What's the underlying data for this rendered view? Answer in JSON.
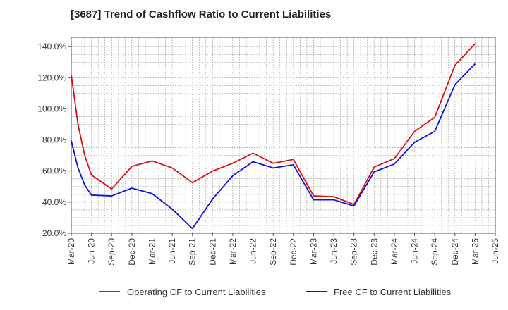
{
  "chart_data": {
    "type": "line",
    "title": "[3687]  Trend of Cashflow Ratio to Current Liabilities",
    "xlabel": "",
    "ylabel": "",
    "ylim": [
      20,
      146
    ],
    "yticks": [
      20,
      40,
      60,
      80,
      100,
      120,
      140
    ],
    "ytick_labels": [
      "20.0%",
      "40.0%",
      "60.0%",
      "80.0%",
      "100.0%",
      "120.0%",
      "140.0%"
    ],
    "xtick_labels": [
      "Mar-20",
      "Jun-20",
      "Sep-20",
      "Dec-20",
      "Mar-21",
      "Jun-21",
      "Sep-21",
      "Dec-21",
      "Mar-22",
      "Jun-22",
      "Sep-22",
      "Dec-22",
      "Mar-23",
      "Jun-23",
      "Sep-23",
      "Dec-23",
      "Mar-24",
      "Jun-24",
      "Sep-24",
      "Dec-24",
      "Mar-25",
      "Jun-25"
    ],
    "grid": true,
    "legend_position": "bottom",
    "series": [
      {
        "name": "Operating CF to Current Liabilities",
        "color": "#dd1111",
        "points": [
          [
            "Mar-20",
            122.0
          ],
          [
            "Apr-20",
            90.0
          ],
          [
            "May-20",
            70.0
          ],
          [
            "Jun-20",
            57.5
          ],
          [
            "Sep-20",
            48.5
          ],
          [
            "Dec-20",
            63.0
          ],
          [
            "Mar-21",
            66.5
          ],
          [
            "Jun-21",
            62.0
          ],
          [
            "Sep-21",
            52.5
          ],
          [
            "Dec-21",
            60.0
          ],
          [
            "Mar-22",
            65.0
          ],
          [
            "Jun-22",
            71.5
          ],
          [
            "Sep-22",
            65.0
          ],
          [
            "Dec-22",
            67.5
          ],
          [
            "Mar-23",
            44.0
          ],
          [
            "Jun-23",
            43.5
          ],
          [
            "Sep-23",
            38.5
          ],
          [
            "Dec-23",
            62.5
          ],
          [
            "Mar-24",
            68.0
          ],
          [
            "Jun-24",
            85.5
          ],
          [
            "Sep-24",
            94.5
          ],
          [
            "Dec-24",
            128.0
          ],
          [
            "Mar-25",
            142.0
          ]
        ]
      },
      {
        "name": "Free CF to Current Liabilities",
        "color": "#1111dd",
        "points": [
          [
            "Mar-20",
            79.5
          ],
          [
            "Apr-20",
            62.0
          ],
          [
            "May-20",
            51.0
          ],
          [
            "Jun-20",
            44.5
          ],
          [
            "Sep-20",
            44.0
          ],
          [
            "Dec-20",
            49.0
          ],
          [
            "Mar-21",
            45.5
          ],
          [
            "Jun-21",
            35.5
          ],
          [
            "Sep-21",
            23.0
          ],
          [
            "Dec-21",
            42.0
          ],
          [
            "Mar-22",
            57.0
          ],
          [
            "Jun-22",
            66.0
          ],
          [
            "Sep-22",
            62.0
          ],
          [
            "Dec-22",
            64.0
          ],
          [
            "Mar-23",
            41.5
          ],
          [
            "Jun-23",
            41.5
          ],
          [
            "Sep-23",
            37.5
          ],
          [
            "Dec-23",
            59.5
          ],
          [
            "Mar-24",
            64.5
          ],
          [
            "Jun-24",
            78.5
          ],
          [
            "Sep-24",
            85.5
          ],
          [
            "Dec-24",
            115.5
          ],
          [
            "Mar-25",
            129.0
          ]
        ]
      }
    ]
  }
}
